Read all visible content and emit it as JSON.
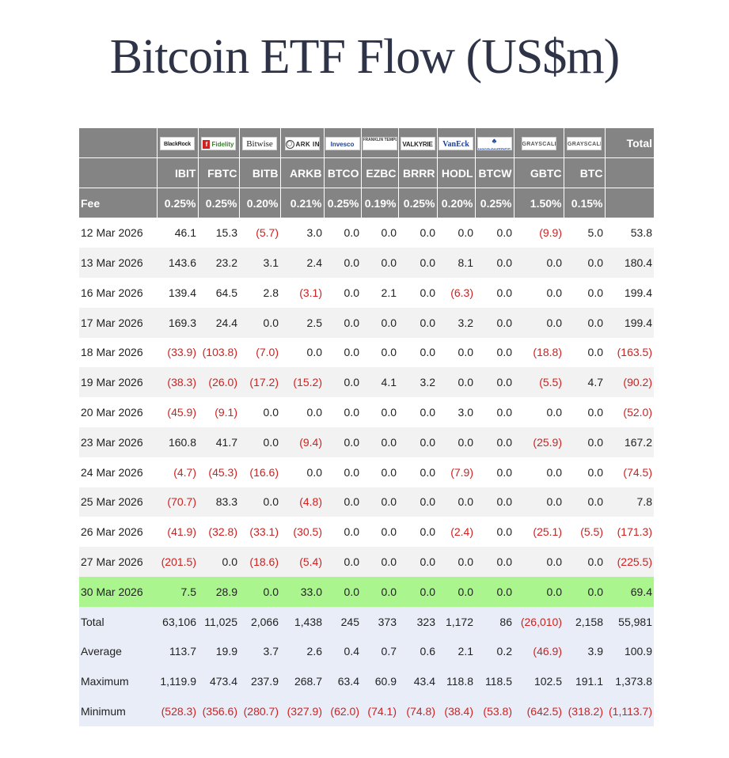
{
  "title": "Bitcoin ETF Flow (US$m)",
  "table": {
    "logos": [
      {
        "name": "blackrock-logo",
        "text": "BlackRock"
      },
      {
        "name": "fidelity-logo",
        "text": "Fidelity"
      },
      {
        "name": "bitwise-logo",
        "text": "Bitwise"
      },
      {
        "name": "ark-logo",
        "text": "ARK INVEST"
      },
      {
        "name": "invesco-logo",
        "text": "Invesco"
      },
      {
        "name": "franklin-templeton-logo",
        "text": "FRANKLIN TEMPLETON"
      },
      {
        "name": "valkyrie-logo",
        "text": "VALKYRIE"
      },
      {
        "name": "vaneck-logo",
        "text": "VanEck"
      },
      {
        "name": "wisdomtree-logo",
        "text": "WISDOMTREE"
      },
      {
        "name": "grayscale-logo",
        "text": "GRAYSCALE"
      },
      {
        "name": "grayscale-logo",
        "text": "GRAYSCALE"
      }
    ],
    "total_header": "Total",
    "tickers": [
      "IBIT",
      "FBTC",
      "BITB",
      "ARKB",
      "BTCO",
      "EZBC",
      "BRRR",
      "HODL",
      "BTCW",
      "GBTC",
      "BTC"
    ],
    "fee_label": "Fee",
    "fees": [
      "0.25%",
      "0.25%",
      "0.20%",
      "0.21%",
      "0.25%",
      "0.19%",
      "0.25%",
      "0.20%",
      "0.25%",
      "1.50%",
      "0.15%"
    ],
    "rows": [
      {
        "date": "12 Mar 2026",
        "values": [
          "46.1",
          "15.3",
          "(5.7)",
          "3.0",
          "0.0",
          "0.0",
          "0.0",
          "0.0",
          "0.0",
          "(9.9)",
          "5.0"
        ],
        "total": "53.8"
      },
      {
        "date": "13 Mar 2026",
        "values": [
          "143.6",
          "23.2",
          "3.1",
          "2.4",
          "0.0",
          "0.0",
          "0.0",
          "8.1",
          "0.0",
          "0.0",
          "0.0"
        ],
        "total": "180.4"
      },
      {
        "date": "16 Mar 2026",
        "values": [
          "139.4",
          "64.5",
          "2.8",
          "(3.1)",
          "0.0",
          "2.1",
          "0.0",
          "(6.3)",
          "0.0",
          "0.0",
          "0.0"
        ],
        "total": "199.4"
      },
      {
        "date": "17 Mar 2026",
        "values": [
          "169.3",
          "24.4",
          "0.0",
          "2.5",
          "0.0",
          "0.0",
          "0.0",
          "3.2",
          "0.0",
          "0.0",
          "0.0"
        ],
        "total": "199.4"
      },
      {
        "date": "18 Mar 2026",
        "values": [
          "(33.9)",
          "(103.8)",
          "(7.0)",
          "0.0",
          "0.0",
          "0.0",
          "0.0",
          "0.0",
          "0.0",
          "(18.8)",
          "0.0"
        ],
        "total": "(163.5)"
      },
      {
        "date": "19 Mar 2026",
        "values": [
          "(38.3)",
          "(26.0)",
          "(17.2)",
          "(15.2)",
          "0.0",
          "4.1",
          "3.2",
          "0.0",
          "0.0",
          "(5.5)",
          "4.7"
        ],
        "total": "(90.2)"
      },
      {
        "date": "20 Mar 2026",
        "values": [
          "(45.9)",
          "(9.1)",
          "0.0",
          "0.0",
          "0.0",
          "0.0",
          "0.0",
          "3.0",
          "0.0",
          "0.0",
          "0.0"
        ],
        "total": "(52.0)"
      },
      {
        "date": "23 Mar 2026",
        "values": [
          "160.8",
          "41.7",
          "0.0",
          "(9.4)",
          "0.0",
          "0.0",
          "0.0",
          "0.0",
          "0.0",
          "(25.9)",
          "0.0"
        ],
        "total": "167.2"
      },
      {
        "date": "24 Mar 2026",
        "values": [
          "(4.7)",
          "(45.3)",
          "(16.6)",
          "0.0",
          "0.0",
          "0.0",
          "0.0",
          "(7.9)",
          "0.0",
          "0.0",
          "0.0"
        ],
        "total": "(74.5)"
      },
      {
        "date": "25 Mar 2026",
        "values": [
          "(70.7)",
          "83.3",
          "0.0",
          "(4.8)",
          "0.0",
          "0.0",
          "0.0",
          "0.0",
          "0.0",
          "0.0",
          "0.0"
        ],
        "total": "7.8"
      },
      {
        "date": "26 Mar 2026",
        "values": [
          "(41.9)",
          "(32.8)",
          "(33.1)",
          "(30.5)",
          "0.0",
          "0.0",
          "0.0",
          "(2.4)",
          "0.0",
          "(25.1)",
          "(5.5)"
        ],
        "total": "(171.3)"
      },
      {
        "date": "27 Mar 2026",
        "values": [
          "(201.5)",
          "0.0",
          "(18.6)",
          "(5.4)",
          "0.0",
          "0.0",
          "0.0",
          "0.0",
          "0.0",
          "0.0",
          "0.0"
        ],
        "total": "(225.5)"
      },
      {
        "date": "30 Mar 2026",
        "values": [
          "7.5",
          "28.9",
          "0.0",
          "33.0",
          "0.0",
          "0.0",
          "0.0",
          "0.0",
          "0.0",
          "0.0",
          "0.0"
        ],
        "total": "69.4",
        "highlight": true
      }
    ],
    "stats": [
      {
        "label": "Total",
        "values": [
          "63,106",
          "11,025",
          "2,066",
          "1,438",
          "245",
          "373",
          "323",
          "1,172",
          "86",
          "(26,010)",
          "2,158"
        ],
        "total": "55,981"
      },
      {
        "label": "Average",
        "values": [
          "113.7",
          "19.9",
          "3.7",
          "2.6",
          "0.4",
          "0.7",
          "0.6",
          "2.1",
          "0.2",
          "(46.9)",
          "3.9"
        ],
        "total": "100.9"
      },
      {
        "label": "Maximum",
        "values": [
          "1,119.9",
          "473.4",
          "237.9",
          "268.7",
          "63.4",
          "60.9",
          "43.4",
          "118.8",
          "118.5",
          "102.5",
          "191.1"
        ],
        "total": "1,373.8"
      },
      {
        "label": "Minimum",
        "values": [
          "(528.3)",
          "(356.6)",
          "(280.7)",
          "(327.9)",
          "(62.0)",
          "(74.1)",
          "(74.8)",
          "(38.4)",
          "(53.8)",
          "(642.5)",
          "(318.2)"
        ],
        "total": "(1,113.7)"
      }
    ],
    "colors": {
      "header_bg": "#848484",
      "negative": "#d0201f",
      "highlight": "#aaf58e",
      "stats_bg": "#e9edf7"
    }
  }
}
